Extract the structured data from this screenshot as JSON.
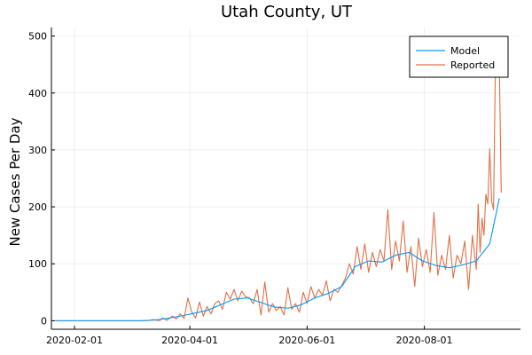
{
  "chart_data": {
    "type": "line",
    "title": "Utah County, UT",
    "xlabel": "",
    "ylabel": "New Cases Per Day",
    "x_type": "date",
    "xlim": [
      "2020-01-20",
      "2020-09-20"
    ],
    "ylim": [
      -15,
      515
    ],
    "x_ticks": [
      "2020-02-01",
      "2020-04-01",
      "2020-06-01",
      "2020-08-01"
    ],
    "y_ticks": [
      0,
      100,
      200,
      300,
      400,
      500
    ],
    "grid": true,
    "legend": "top-right",
    "series": [
      {
        "name": "Model",
        "color": "#009AFA",
        "points": [
          [
            "2020-01-22",
            0
          ],
          [
            "2020-03-06",
            0
          ],
          [
            "2020-03-13",
            1
          ],
          [
            "2020-03-20",
            4
          ],
          [
            "2020-03-27",
            8
          ],
          [
            "2020-04-03",
            13
          ],
          [
            "2020-04-10",
            18
          ],
          [
            "2020-04-17",
            28
          ],
          [
            "2020-04-24",
            38
          ],
          [
            "2020-05-01",
            40
          ],
          [
            "2020-05-08",
            32
          ],
          [
            "2020-05-15",
            24
          ],
          [
            "2020-05-22",
            22
          ],
          [
            "2020-05-29",
            28
          ],
          [
            "2020-06-05",
            40
          ],
          [
            "2020-06-12",
            48
          ],
          [
            "2020-06-19",
            60
          ],
          [
            "2020-06-26",
            95
          ],
          [
            "2020-07-03",
            105
          ],
          [
            "2020-07-10",
            103
          ],
          [
            "2020-07-17",
            115
          ],
          [
            "2020-07-24",
            120
          ],
          [
            "2020-07-31",
            105
          ],
          [
            "2020-08-07",
            97
          ],
          [
            "2020-08-14",
            93
          ],
          [
            "2020-08-21",
            98
          ],
          [
            "2020-08-28",
            105
          ],
          [
            "2020-09-04",
            135
          ],
          [
            "2020-09-09",
            215
          ]
        ]
      },
      {
        "name": "Reported",
        "color": "#E26F46",
        "points": [
          [
            "2020-01-22",
            0
          ],
          [
            "2020-03-06",
            0
          ],
          [
            "2020-03-10",
            0
          ],
          [
            "2020-03-13",
            2
          ],
          [
            "2020-03-16",
            0
          ],
          [
            "2020-03-18",
            5
          ],
          [
            "2020-03-20",
            1
          ],
          [
            "2020-03-23",
            8
          ],
          [
            "2020-03-25",
            3
          ],
          [
            "2020-03-27",
            12
          ],
          [
            "2020-03-29",
            4
          ],
          [
            "2020-03-31",
            40
          ],
          [
            "2020-04-02",
            15
          ],
          [
            "2020-04-04",
            5
          ],
          [
            "2020-04-06",
            33
          ],
          [
            "2020-04-08",
            8
          ],
          [
            "2020-04-10",
            25
          ],
          [
            "2020-04-12",
            12
          ],
          [
            "2020-04-14",
            30
          ],
          [
            "2020-04-16",
            35
          ],
          [
            "2020-04-18",
            20
          ],
          [
            "2020-04-20",
            50
          ],
          [
            "2020-04-22",
            38
          ],
          [
            "2020-04-24",
            55
          ],
          [
            "2020-04-26",
            35
          ],
          [
            "2020-04-28",
            52
          ],
          [
            "2020-04-30",
            42
          ],
          [
            "2020-05-02",
            40
          ],
          [
            "2020-05-04",
            30
          ],
          [
            "2020-05-06",
            55
          ],
          [
            "2020-05-08",
            10
          ],
          [
            "2020-05-10",
            68
          ],
          [
            "2020-05-12",
            15
          ],
          [
            "2020-05-14",
            30
          ],
          [
            "2020-05-16",
            18
          ],
          [
            "2020-05-18",
            25
          ],
          [
            "2020-05-20",
            10
          ],
          [
            "2020-05-22",
            58
          ],
          [
            "2020-05-24",
            20
          ],
          [
            "2020-05-26",
            30
          ],
          [
            "2020-05-28",
            15
          ],
          [
            "2020-05-30",
            50
          ],
          [
            "2020-06-01",
            30
          ],
          [
            "2020-06-03",
            60
          ],
          [
            "2020-06-05",
            40
          ],
          [
            "2020-06-07",
            55
          ],
          [
            "2020-06-09",
            45
          ],
          [
            "2020-06-11",
            70
          ],
          [
            "2020-06-13",
            35
          ],
          [
            "2020-06-15",
            55
          ],
          [
            "2020-06-17",
            50
          ],
          [
            "2020-06-19",
            62
          ],
          [
            "2020-06-21",
            75
          ],
          [
            "2020-06-23",
            100
          ],
          [
            "2020-06-25",
            82
          ],
          [
            "2020-06-27",
            130
          ],
          [
            "2020-06-29",
            90
          ],
          [
            "2020-07-01",
            135
          ],
          [
            "2020-07-03",
            85
          ],
          [
            "2020-07-05",
            120
          ],
          [
            "2020-07-07",
            95
          ],
          [
            "2020-07-09",
            125
          ],
          [
            "2020-07-11",
            105
          ],
          [
            "2020-07-13",
            195
          ],
          [
            "2020-07-15",
            90
          ],
          [
            "2020-07-17",
            140
          ],
          [
            "2020-07-19",
            105
          ],
          [
            "2020-07-21",
            175
          ],
          [
            "2020-07-23",
            85
          ],
          [
            "2020-07-25",
            130
          ],
          [
            "2020-07-27",
            60
          ],
          [
            "2020-07-29",
            145
          ],
          [
            "2020-07-31",
            95
          ],
          [
            "2020-08-02",
            125
          ],
          [
            "2020-08-04",
            85
          ],
          [
            "2020-08-06",
            190
          ],
          [
            "2020-08-08",
            80
          ],
          [
            "2020-08-10",
            115
          ],
          [
            "2020-08-12",
            90
          ],
          [
            "2020-08-14",
            150
          ],
          [
            "2020-08-16",
            75
          ],
          [
            "2020-08-18",
            115
          ],
          [
            "2020-08-20",
            100
          ],
          [
            "2020-08-22",
            140
          ],
          [
            "2020-08-24",
            55
          ],
          [
            "2020-08-26",
            150
          ],
          [
            "2020-08-28",
            90
          ],
          [
            "2020-08-29",
            205
          ],
          [
            "2020-08-30",
            120
          ],
          [
            "2020-08-31",
            180
          ],
          [
            "2020-09-01",
            150
          ],
          [
            "2020-09-02",
            222
          ],
          [
            "2020-09-03",
            205
          ],
          [
            "2020-09-04",
            302
          ],
          [
            "2020-09-05",
            210
          ],
          [
            "2020-09-06",
            195
          ],
          [
            "2020-09-07",
            460
          ],
          [
            "2020-09-08",
            498
          ],
          [
            "2020-09-09",
            450
          ],
          [
            "2020-09-10",
            225
          ]
        ]
      }
    ]
  }
}
